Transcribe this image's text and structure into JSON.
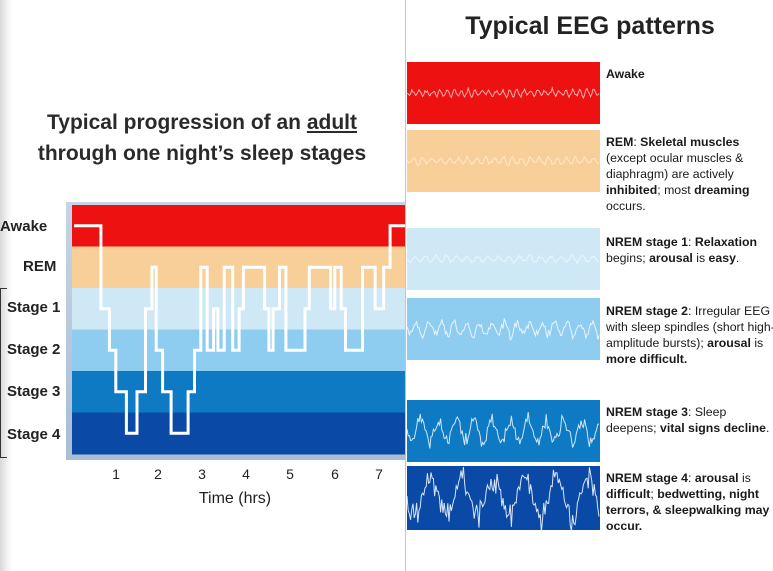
{
  "left": {
    "title_pre": "Typical progression of an ",
    "title_u": "adult",
    "title_post": "through one night’s sleep stages",
    "stage_labels": [
      "Awake",
      "REM",
      "Stage 1",
      "Stage 2",
      "Stage 3",
      "Stage 4"
    ],
    "x_ticks": [
      "1",
      "2",
      "3",
      "4",
      "5",
      "6",
      "7"
    ],
    "x_title": "Time (hrs)"
  },
  "chart_data": {
    "type": "line",
    "title": "Typical progression of an adult through one night’s sleep stages",
    "xlabel": "Time (hrs)",
    "ylabel": "",
    "categories": [
      "Awake",
      "REM",
      "Stage 1",
      "Stage 2",
      "Stage 3",
      "Stage 4"
    ],
    "xlim": [
      0,
      7.5
    ],
    "band_colors": [
      "#ee1111",
      "#f8cf98",
      "#cfe8f6",
      "#8fcdf0",
      "#0f7ac4",
      "#0a49a5"
    ],
    "series": [
      {
        "points": [
          [
            0,
            0
          ],
          [
            0.35,
            0
          ],
          [
            0.35,
            2
          ],
          [
            0.55,
            2
          ],
          [
            0.55,
            3
          ],
          [
            0.7,
            3
          ],
          [
            0.7,
            4
          ],
          [
            0.95,
            4
          ],
          [
            0.95,
            5
          ],
          [
            1.2,
            5
          ],
          [
            1.2,
            4
          ],
          [
            1.4,
            4
          ],
          [
            1.4,
            2
          ],
          [
            1.55,
            2
          ],
          [
            1.55,
            1
          ],
          [
            1.65,
            1
          ],
          [
            1.65,
            3
          ],
          [
            1.8,
            3
          ],
          [
            1.8,
            4
          ],
          [
            2.0,
            4
          ],
          [
            2.0,
            5
          ],
          [
            2.4,
            5
          ],
          [
            2.4,
            4
          ],
          [
            2.55,
            4
          ],
          [
            2.55,
            3
          ],
          [
            2.7,
            3
          ],
          [
            2.7,
            1
          ],
          [
            2.85,
            1
          ],
          [
            2.85,
            3
          ],
          [
            3.0,
            3
          ],
          [
            3.0,
            2
          ],
          [
            3.1,
            2
          ],
          [
            3.1,
            3
          ],
          [
            3.25,
            3
          ],
          [
            3.25,
            1
          ],
          [
            3.45,
            1
          ],
          [
            3.45,
            3
          ],
          [
            3.6,
            3
          ],
          [
            3.6,
            2
          ],
          [
            3.7,
            2
          ],
          [
            3.7,
            1
          ],
          [
            4.2,
            1
          ],
          [
            4.2,
            2
          ],
          [
            4.3,
            2
          ],
          [
            4.3,
            3
          ],
          [
            4.4,
            3
          ],
          [
            4.4,
            2
          ],
          [
            4.55,
            2
          ],
          [
            4.55,
            1
          ],
          [
            4.7,
            1
          ],
          [
            4.7,
            3
          ],
          [
            5.15,
            3
          ],
          [
            5.15,
            2
          ],
          [
            5.25,
            2
          ],
          [
            5.25,
            1
          ],
          [
            5.75,
            1
          ],
          [
            5.75,
            2
          ],
          [
            5.85,
            2
          ],
          [
            5.85,
            1
          ],
          [
            6.0,
            1
          ],
          [
            6.0,
            2
          ],
          [
            6.1,
            2
          ],
          [
            6.1,
            3
          ],
          [
            6.5,
            3
          ],
          [
            6.5,
            1
          ],
          [
            6.8,
            1
          ],
          [
            6.8,
            2
          ],
          [
            7.0,
            2
          ],
          [
            7.0,
            1
          ],
          [
            7.15,
            1
          ],
          [
            7.15,
            0
          ],
          [
            7.5,
            0
          ]
        ]
      }
    ]
  },
  "right": {
    "title": "Typical EEG patterns",
    "bands": [
      {
        "name": "Awake",
        "bg": "#ee1111",
        "line": "#f5b0b0",
        "amp": 3,
        "freq": 0.9,
        "noise": 0.9
      },
      {
        "name": "REM",
        "bg": "#f8cf98",
        "line": "#fde9cc",
        "amp": 3,
        "freq": 0.7,
        "noise": 0.8
      },
      {
        "name": "NREM stage 1",
        "bg": "#cfe8f6",
        "line": "#e9f5fc",
        "amp": 3,
        "freq": 0.6,
        "noise": 0.6
      },
      {
        "name": "NREM stage 2",
        "bg": "#8fcdf0",
        "line": "#e6f4fb",
        "amp": 6,
        "freq": 0.5,
        "noise": 0.9
      },
      {
        "name": "NREM stage 3",
        "bg": "#0f7ac4",
        "line": "#cfe6f6",
        "amp": 11,
        "freq": 0.35,
        "noise": 0.8
      },
      {
        "name": "NREM stage 4",
        "bg": "#0a49a5",
        "line": "#d8e6f8",
        "amp": 20,
        "freq": 0.2,
        "noise": 0.7
      }
    ],
    "descriptions": {
      "awake": {
        "t1": "Awake"
      },
      "rem": {
        "t1": "REM",
        "t2": ": ",
        "t3": "Skeletal muscles",
        "t4": " (except  ocular muscles & diaphragm) are actively ",
        "t5": "inhibited",
        "t6": "; most ",
        "t7": "dreaming",
        "t8": " occurs."
      },
      "s1": {
        "t1": "NREM stage 1",
        "t2": ": ",
        "t3": "Relaxation",
        "t4": " begins; ",
        "t5": "arousal",
        "t6": " is ",
        "t7": "easy",
        "t8": "."
      },
      "s2": {
        "t1": "NREM stage 2",
        "t2": ": Irregular EEG with sleep spindles (short high- amplitude bursts); ",
        "t3": "arousal",
        "t4": " is ",
        "t5": "more difficult."
      },
      "s3": {
        "t1": "NREM stage 3",
        "t2": ": Sleep deepens;  ",
        "t3": "vital signs decline",
        "t4": "."
      },
      "s4": {
        "t1": "NREM stage 4",
        "t2": ": ",
        "t3": "arousal",
        "t4": " is ",
        "t5": "difficult",
        "t6": ";  ",
        "t7": "bedwetting, night terrors, & sleepwalking may occur."
      }
    }
  }
}
